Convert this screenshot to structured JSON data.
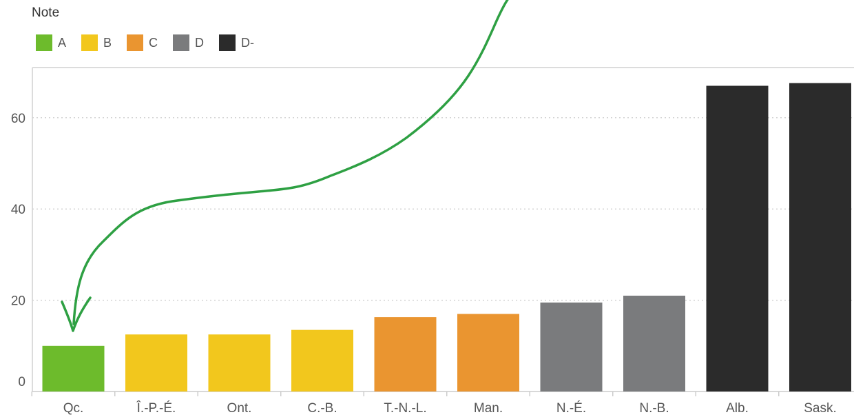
{
  "legend": {
    "title": "Note",
    "items": [
      {
        "label": "A",
        "color": "#6dbb2c"
      },
      {
        "label": "B",
        "color": "#f2c71d"
      },
      {
        "label": "C",
        "color": "#ea9530"
      },
      {
        "label": "D",
        "color": "#7a7b7d"
      },
      {
        "label": "D-",
        "color": "#2b2b2b"
      }
    ]
  },
  "chart_data": {
    "type": "bar",
    "title": "",
    "xlabel": "",
    "ylabel": "",
    "ylim": [
      0,
      70
    ],
    "yticks": [
      0,
      20,
      40,
      60
    ],
    "grid": true,
    "legend_position": "top-left",
    "categories": [
      "Qc.",
      "Î.-P.-É.",
      "Ont.",
      "C.-B.",
      "T.-N.-L.",
      "Man.",
      "N.-É.",
      "N.-B.",
      "Alb.",
      "Sask."
    ],
    "values": [
      10,
      12.5,
      12.5,
      13.5,
      16.3,
      17,
      19.5,
      21,
      67,
      67.6
    ],
    "grades": [
      "A",
      "B",
      "B",
      "B",
      "C",
      "C",
      "D",
      "D",
      "D-",
      "D-"
    ],
    "annotation": {
      "type": "hand-drawn-arrow",
      "color": "#2ea043",
      "points_to": "Qc."
    }
  }
}
